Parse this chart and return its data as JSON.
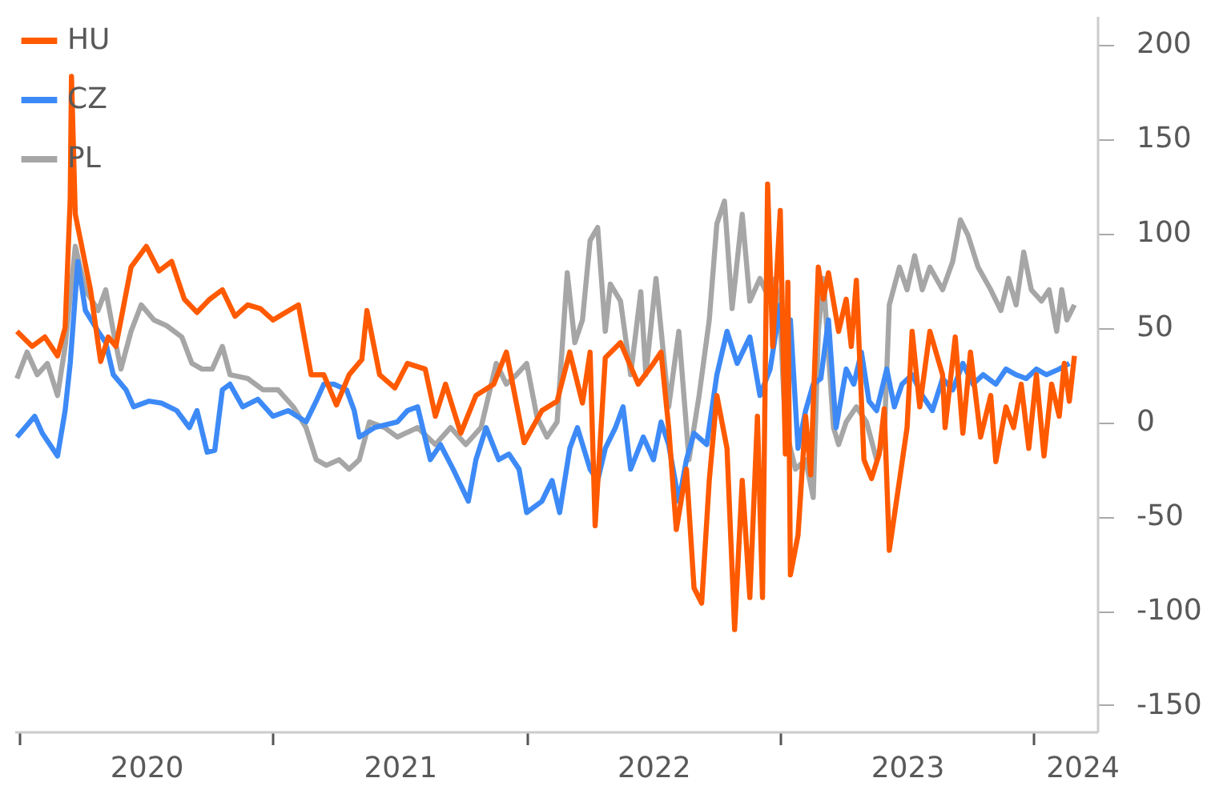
{
  "chart_data": {
    "type": "line",
    "xlim": [
      2019.98,
      2024.25
    ],
    "xticks": [
      {
        "value": 2020,
        "label": null
      },
      {
        "value": 2020.5,
        "label": "2020"
      },
      {
        "value": 2021,
        "label": null
      },
      {
        "value": 2021.5,
        "label": "2021"
      },
      {
        "value": 2022,
        "label": null
      },
      {
        "value": 2022.5,
        "label": "2022"
      },
      {
        "value": 2023,
        "label": null
      },
      {
        "value": 2023.5,
        "label": "2023"
      },
      {
        "value": 2024,
        "label": null
      },
      {
        "value": 2024.19,
        "label": "2024"
      }
    ],
    "ylim": [
      -164,
      215
    ],
    "yticks": [
      -150,
      -100,
      -50,
      0,
      50,
      100,
      150,
      200
    ],
    "grid": false,
    "legend": "top left",
    "marker": "none",
    "line_style": "solid",
    "series": [
      {
        "name": "HU",
        "color": "#ff5a00",
        "x": [
          2019.99,
          2020.05,
          2020.1,
          2020.15,
          2020.18,
          2020.2,
          2020.205,
          2020.22,
          2020.25,
          2020.28,
          2020.32,
          2020.35,
          2020.38,
          2020.44,
          2020.5,
          2020.55,
          2020.6,
          2020.65,
          2020.7,
          2020.75,
          2020.8,
          2020.85,
          2020.9,
          2020.95,
          2021.0,
          2021.05,
          2021.1,
          2021.15,
          2021.2,
          2021.25,
          2021.3,
          2021.35,
          2021.37,
          2021.42,
          2021.48,
          2021.53,
          2021.6,
          2021.64,
          2021.68,
          2021.74,
          2021.8,
          2021.87,
          2021.92,
          2021.99,
          2022.06,
          2022.12,
          2022.17,
          2022.22,
          2022.25,
          2022.27,
          2022.31,
          2022.37,
          2022.44,
          2022.5,
          2022.53,
          2022.56,
          2022.59,
          2022.63,
          2022.66,
          2022.69,
          2022.72,
          2022.75,
          2022.79,
          2022.82,
          2022.85,
          2022.88,
          2022.91,
          2022.93,
          2022.95,
          2022.97,
          2023.0,
          2023.02,
          2023.03,
          2023.04,
          2023.07,
          2023.1,
          2023.12,
          2023.15,
          2023.17,
          2023.19,
          2023.23,
          2023.26,
          2023.28,
          2023.3,
          2023.33,
          2023.36,
          2023.39,
          2023.41,
          2023.43,
          2023.47,
          2023.5,
          2023.52,
          2023.55,
          2023.59,
          2023.64,
          2023.65,
          2023.69,
          2023.72,
          2023.75,
          2023.79,
          2023.83,
          2023.85,
          2023.89,
          2023.92,
          2023.95,
          2023.98,
          2024.01,
          2024.04,
          2024.07,
          2024.1,
          2024.12,
          2024.14,
          2024.16
        ],
        "values": [
          48,
          40,
          45,
          35,
          50,
          118,
          183,
          110,
          90,
          70,
          32,
          45,
          40,
          82,
          93,
          80,
          85,
          65,
          58,
          65,
          70,
          56,
          62,
          60,
          54,
          58,
          62,
          25,
          25,
          9,
          25,
          33,
          59,
          25,
          18,
          31,
          28,
          3,
          20,
          -6,
          14,
          20,
          37,
          -11,
          6,
          11,
          37,
          10,
          37,
          -55,
          34,
          42,
          20,
          31,
          37,
          -3,
          -57,
          -25,
          -88,
          -96,
          -31,
          14,
          -14,
          -110,
          -31,
          -93,
          3,
          -93,
          126,
          40,
          112,
          -17,
          74,
          -81,
          -60,
          3,
          -28,
          82,
          65,
          79,
          48,
          65,
          40,
          75,
          -20,
          -30,
          -17,
          7,
          -68,
          -31,
          -3,
          48,
          8,
          48,
          25,
          -3,
          45,
          -6,
          37,
          -8,
          14,
          -21,
          8,
          -3,
          20,
          -14,
          25,
          -18,
          20,
          3,
          31,
          11,
          35
        ]
      },
      {
        "name": "CZ",
        "color": "#3d8af7",
        "x": [
          2019.99,
          2020.06,
          2020.09,
          2020.15,
          2020.18,
          2020.2,
          2020.23,
          2020.26,
          2020.31,
          2020.34,
          2020.37,
          2020.42,
          2020.45,
          2020.51,
          2020.56,
          2020.62,
          2020.67,
          2020.7,
          2020.74,
          2020.77,
          2020.8,
          2020.83,
          2020.88,
          2020.94,
          2021.0,
          2021.06,
          2021.13,
          2021.17,
          2021.2,
          2021.24,
          2021.29,
          2021.32,
          2021.34,
          2021.4,
          2021.49,
          2021.53,
          2021.57,
          2021.62,
          2021.66,
          2021.71,
          2021.77,
          2021.8,
          2021.84,
          2021.89,
          2021.93,
          2021.97,
          2022.0,
          2022.06,
          2022.1,
          2022.13,
          2022.17,
          2022.2,
          2022.25,
          2022.28,
          2022.31,
          2022.35,
          2022.38,
          2022.41,
          2022.46,
          2022.5,
          2022.53,
          2022.56,
          2022.6,
          2022.63,
          2022.66,
          2022.71,
          2022.75,
          2022.79,
          2022.83,
          2022.88,
          2022.92,
          2022.96,
          2023.0,
          2023.02,
          2023.04,
          2023.07,
          2023.1,
          2023.13,
          2023.16,
          2023.19,
          2023.22,
          2023.26,
          2023.29,
          2023.32,
          2023.35,
          2023.38,
          2023.42,
          2023.45,
          2023.48,
          2023.52,
          2023.56,
          2023.6,
          2023.64,
          2023.68,
          2023.72,
          2023.76,
          2023.8,
          2023.85,
          2023.89,
          2023.93,
          2023.97,
          2024.01,
          2024.05,
          2024.1,
          2024.14
        ],
        "values": [
          -8,
          3,
          -6,
          -18,
          6,
          31,
          85,
          59,
          48,
          42,
          25,
          17,
          8,
          11,
          10,
          6,
          -3,
          6,
          -16,
          -15,
          17,
          20,
          8,
          12,
          3,
          6,
          0,
          11,
          20,
          20,
          17,
          6,
          -8,
          -3,
          0,
          6,
          8,
          -20,
          -12,
          -25,
          -42,
          -20,
          -3,
          -20,
          -17,
          -25,
          -48,
          -42,
          -31,
          -48,
          -14,
          -3,
          -25,
          -31,
          -14,
          -3,
          8,
          -25,
          -8,
          -20,
          0,
          -12,
          -42,
          -20,
          -6,
          -12,
          25,
          48,
          31,
          45,
          14,
          28,
          62,
          28,
          54,
          -14,
          6,
          20,
          23,
          54,
          -3,
          28,
          20,
          37,
          11,
          6,
          28,
          8,
          20,
          25,
          14,
          6,
          23,
          17,
          31,
          20,
          25,
          20,
          28,
          25,
          23,
          28,
          25,
          28,
          31
        ]
      },
      {
        "name": "PL",
        "color": "#a6a6a6",
        "x": [
          2019.99,
          2020.03,
          2020.07,
          2020.11,
          2020.15,
          2020.18,
          2020.22,
          2020.26,
          2020.31,
          2020.34,
          2020.37,
          2020.4,
          2020.44,
          2020.48,
          2020.53,
          2020.58,
          2020.64,
          2020.68,
          2020.72,
          2020.76,
          2020.8,
          2020.83,
          2020.9,
          2020.96,
          2021.02,
          2021.08,
          2021.13,
          2021.17,
          2021.21,
          2021.26,
          2021.3,
          2021.34,
          2021.38,
          2021.44,
          2021.49,
          2021.57,
          2021.64,
          2021.7,
          2021.76,
          2021.82,
          2021.88,
          2021.92,
          2021.96,
          2022.0,
          2022.04,
          2022.08,
          2022.12,
          2022.16,
          2022.19,
          2022.22,
          2022.25,
          2022.28,
          2022.31,
          2022.33,
          2022.37,
          2022.41,
          2022.45,
          2022.47,
          2022.51,
          2022.56,
          2022.6,
          2022.64,
          2022.68,
          2022.72,
          2022.75,
          2022.78,
          2022.81,
          2022.85,
          2022.88,
          2022.92,
          2022.96,
          2022.98,
          2023.0,
          2023.02,
          2023.06,
          2023.1,
          2023.13,
          2023.15,
          2023.17,
          2023.21,
          2023.23,
          2023.26,
          2023.3,
          2023.34,
          2023.38,
          2023.41,
          2023.43,
          2023.47,
          2023.5,
          2023.53,
          2023.56,
          2023.59,
          2023.64,
          2023.68,
          2023.71,
          2023.74,
          2023.78,
          2023.83,
          2023.87,
          2023.9,
          2023.93,
          2023.96,
          2023.99,
          2024.03,
          2024.06,
          2024.09,
          2024.11,
          2024.13,
          2024.16
        ],
        "values": [
          23,
          37,
          25,
          31,
          14,
          40,
          93,
          70,
          59,
          70,
          48,
          28,
          48,
          62,
          54,
          51,
          45,
          31,
          28,
          28,
          40,
          25,
          23,
          17,
          17,
          8,
          -3,
          -20,
          -23,
          -20,
          -25,
          -20,
          0,
          -3,
          -8,
          -3,
          -12,
          -3,
          -12,
          -3,
          31,
          20,
          25,
          31,
          3,
          -8,
          0,
          79,
          42,
          54,
          96,
          103,
          48,
          73,
          64,
          25,
          69,
          25,
          76,
          8,
          48,
          -20,
          14,
          54,
          105,
          117,
          60,
          110,
          64,
          76,
          64,
          76,
          54,
          -3,
          -25,
          -20,
          -40,
          48,
          76,
          -3,
          -12,
          0,
          8,
          0,
          -20,
          -8,
          62,
          82,
          70,
          88,
          70,
          82,
          70,
          85,
          107,
          99,
          82,
          70,
          59,
          76,
          62,
          90,
          70,
          64,
          70,
          48,
          70,
          54,
          62
        ]
      }
    ]
  }
}
